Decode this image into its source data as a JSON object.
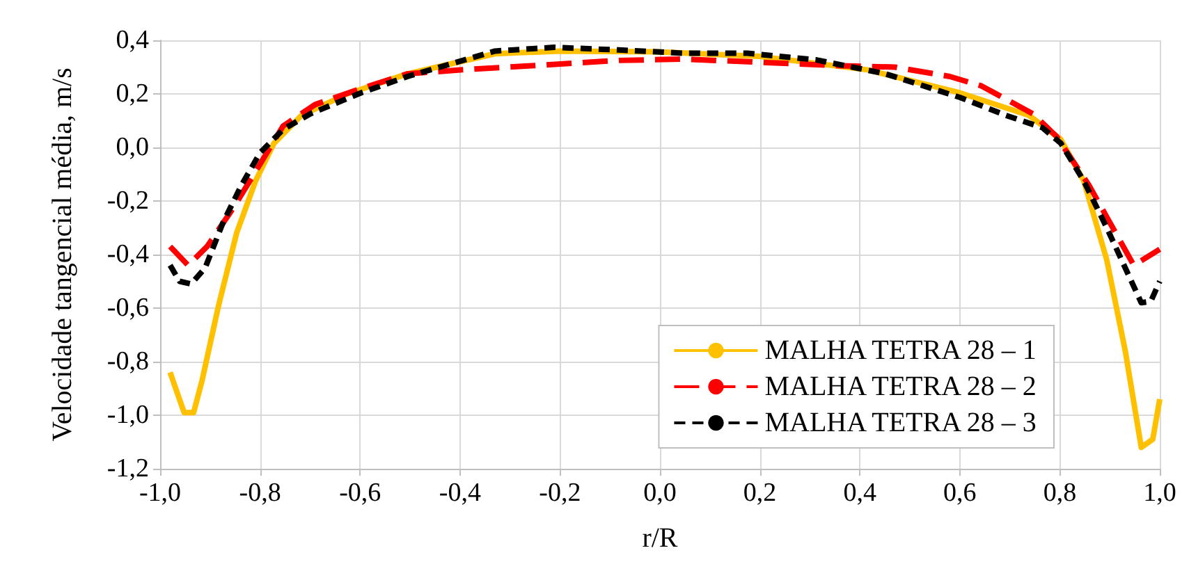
{
  "chart_data": {
    "type": "line",
    "xlabel": "r/R",
    "ylabel": "Velocidade tangencial média, m/s",
    "xlim": [
      -1,
      1
    ],
    "ylim": [
      -1.2,
      0.4
    ],
    "xticks": [
      {
        "value": -1,
        "label": "-1,0"
      },
      {
        "value": -0.8,
        "label": "-0,8"
      },
      {
        "value": -0.6,
        "label": "-0,6"
      },
      {
        "value": -0.4,
        "label": "-0,4"
      },
      {
        "value": -0.2,
        "label": "-0,2"
      },
      {
        "value": 0,
        "label": "0,0"
      },
      {
        "value": 0.2,
        "label": "0,2"
      },
      {
        "value": 0.4,
        "label": "0,4"
      },
      {
        "value": 0.6,
        "label": "0,6"
      },
      {
        "value": 0.8,
        "label": "0,8"
      },
      {
        "value": 1,
        "label": "1,0"
      }
    ],
    "yticks": [
      {
        "value": -1.2,
        "label": "-1,2"
      },
      {
        "value": -1,
        "label": "-1,0"
      },
      {
        "value": -0.8,
        "label": "-0,8"
      },
      {
        "value": -0.6,
        "label": "-0,6"
      },
      {
        "value": -0.4,
        "label": "-0,4"
      },
      {
        "value": -0.2,
        "label": "-0,2"
      },
      {
        "value": 0,
        "label": "0,0"
      },
      {
        "value": 0.2,
        "label": "0,2"
      },
      {
        "value": 0.4,
        "label": "0,4"
      }
    ],
    "grid": true,
    "legend": "bottom right",
    "marker": "none",
    "series": [
      {
        "name": "MALHA TETRA 28 – 1",
        "color": "#ffc000",
        "line_style": "solid",
        "x": [
          -0.98,
          -0.952,
          -0.933,
          -0.916,
          -0.883,
          -0.847,
          -0.809,
          -0.772,
          -0.717,
          -0.626,
          -0.505,
          -0.33,
          -0.2,
          -0.007,
          0.2,
          0.415,
          0.6,
          0.738,
          0.802,
          0.848,
          0.894,
          0.931,
          0.963,
          0.986,
          1.0
        ],
        "values": [
          -0.84,
          -0.99,
          -0.99,
          -0.87,
          -0.59,
          -0.32,
          -0.125,
          0.016,
          0.12,
          0.2,
          0.275,
          0.35,
          0.36,
          0.357,
          0.34,
          0.29,
          0.204,
          0.12,
          0.03,
          -0.125,
          -0.42,
          -0.76,
          -1.12,
          -1.09,
          -0.94
        ]
      },
      {
        "name": "MALHA TETRA 28 – 2",
        "color": "#ff0000",
        "line_style": "dashed",
        "x": [
          -0.98,
          -0.944,
          -0.906,
          -0.855,
          -0.809,
          -0.754,
          -0.69,
          -0.598,
          -0.505,
          -0.395,
          -0.257,
          -0.082,
          0.047,
          0.213,
          0.36,
          0.47,
          0.58,
          0.643,
          0.746,
          0.793,
          0.858,
          0.894,
          0.948,
          1.0
        ],
        "values": [
          -0.37,
          -0.44,
          -0.37,
          -0.23,
          -0.09,
          0.08,
          0.16,
          0.22,
          0.275,
          0.29,
          0.305,
          0.325,
          0.33,
          0.317,
          0.305,
          0.3,
          0.265,
          0.23,
          0.126,
          0.042,
          -0.14,
          -0.26,
          -0.44,
          -0.38
        ]
      },
      {
        "name": "MALHA TETRA 28 – 3",
        "color": "#000000",
        "line_style": "dotted",
        "x": [
          -0.98,
          -0.961,
          -0.938,
          -0.91,
          -0.874,
          -0.837,
          -0.8,
          -0.754,
          -0.699,
          -0.598,
          -0.505,
          -0.33,
          -0.212,
          -0.082,
          0.047,
          0.175,
          0.313,
          0.451,
          0.6,
          0.692,
          0.765,
          0.802,
          0.848,
          0.894,
          0.931,
          0.963,
          0.982,
          1.0
        ],
        "values": [
          -0.44,
          -0.5,
          -0.51,
          -0.45,
          -0.28,
          -0.14,
          -0.02,
          0.067,
          0.126,
          0.204,
          0.265,
          0.36,
          0.374,
          0.364,
          0.352,
          0.352,
          0.327,
          0.275,
          0.187,
          0.12,
          0.074,
          0.016,
          -0.125,
          -0.3,
          -0.45,
          -0.58,
          -0.575,
          -0.5
        ]
      }
    ]
  }
}
